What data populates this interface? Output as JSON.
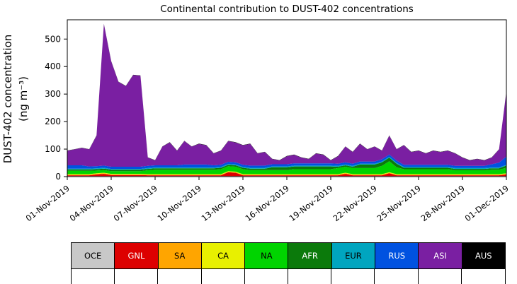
{
  "title": "Continental contribution to DUST-402 concentrations",
  "ylabel_line1": "DUST-402 concentration",
  "ylabel_line2": "(ng m⁻³)",
  "chart_data": {
    "type": "area",
    "stacked": true,
    "title": "Continental contribution to DUST-402 concentrations",
    "ylabel": "DUST-402 concentration (ng m⁻³)",
    "xlabel": "",
    "x_unit": "days since 01-Nov-2019",
    "xlim": [
      0,
      30
    ],
    "ylim": [
      0,
      570
    ],
    "grid": false,
    "legend_position": "bottom-table",
    "yticks": [
      0,
      100,
      200,
      300,
      400,
      500
    ],
    "xticks": [
      {
        "day": 0,
        "label": "01-Nov-2019"
      },
      {
        "day": 3,
        "label": "04-Nov-2019"
      },
      {
        "day": 6,
        "label": "07-Nov-2019"
      },
      {
        "day": 9,
        "label": "10-Nov-2019"
      },
      {
        "day": 12,
        "label": "13-Nov-2019"
      },
      {
        "day": 15,
        "label": "16-Nov-2019"
      },
      {
        "day": 18,
        "label": "19-Nov-2019"
      },
      {
        "day": 21,
        "label": "22-Nov-2019"
      },
      {
        "day": 24,
        "label": "25-Nov-2019"
      },
      {
        "day": 27,
        "label": "28-Nov-2019"
      },
      {
        "day": 30,
        "label": "01-Dec-2019"
      }
    ],
    "x": [
      0,
      0.5,
      1,
      1.5,
      2,
      2.5,
      3,
      3.5,
      4,
      4.5,
      5,
      5.5,
      6,
      6.5,
      7,
      7.5,
      8,
      8.5,
      9,
      9.5,
      10,
      10.5,
      11,
      11.5,
      12,
      12.5,
      13,
      13.5,
      14,
      14.5,
      15,
      15.5,
      16,
      16.5,
      17,
      17.5,
      18,
      18.5,
      19,
      19.5,
      20,
      20.5,
      21,
      21.5,
      22,
      22.5,
      23,
      23.5,
      24,
      24.5,
      25,
      25.5,
      26,
      26.5,
      27,
      27.5,
      28,
      28.5,
      29,
      29.5,
      30
    ],
    "series": [
      {
        "label": "OCE",
        "color": "#c8c8c8",
        "text_color": "#000000",
        "values": [
          2,
          2,
          2,
          2,
          2,
          2,
          2,
          2,
          2,
          2,
          2,
          2,
          2,
          2,
          2,
          2,
          2,
          2,
          2,
          2,
          2,
          2,
          2,
          2,
          2,
          2,
          2,
          2,
          2,
          2,
          2,
          2,
          2,
          2,
          2,
          2,
          2,
          2,
          2,
          2,
          2,
          2,
          2,
          2,
          2,
          2,
          2,
          2,
          2,
          2,
          2,
          2,
          2,
          2,
          2,
          2,
          2,
          2,
          2,
          2,
          2
        ]
      },
      {
        "label": "GNL",
        "color": "#dd0000",
        "text_color": "#ffffff",
        "values": [
          3,
          3,
          3,
          3,
          6,
          8,
          4,
          4,
          4,
          4,
          4,
          3,
          3,
          3,
          3,
          3,
          3,
          3,
          3,
          3,
          3,
          3,
          14,
          12,
          3,
          3,
          3,
          3,
          3,
          3,
          3,
          3,
          3,
          3,
          3,
          3,
          3,
          3,
          8,
          3,
          3,
          3,
          3,
          3,
          10,
          3,
          3,
          3,
          3,
          3,
          3,
          3,
          3,
          3,
          3,
          3,
          3,
          3,
          3,
          3,
          6
        ]
      },
      {
        "label": "SA",
        "color": "#ffa500",
        "text_color": "#000000",
        "values": [
          2,
          2,
          2,
          2,
          2,
          2,
          2,
          2,
          2,
          2,
          2,
          2,
          2,
          2,
          2,
          2,
          2,
          2,
          2,
          2,
          2,
          2,
          2,
          2,
          2,
          2,
          2,
          2,
          2,
          2,
          2,
          2,
          2,
          2,
          2,
          2,
          2,
          2,
          2,
          2,
          2,
          2,
          2,
          2,
          2,
          2,
          2,
          2,
          2,
          2,
          2,
          2,
          2,
          2,
          2,
          2,
          2,
          2,
          2,
          2,
          2
        ]
      },
      {
        "label": "CA",
        "color": "#e8f000",
        "text_color": "#000000",
        "values": [
          2,
          2,
          2,
          2,
          2,
          2,
          2,
          2,
          2,
          2,
          2,
          2,
          2,
          2,
          2,
          2,
          2,
          2,
          2,
          2,
          2,
          2,
          2,
          2,
          2,
          2,
          2,
          2,
          2,
          2,
          2,
          2,
          2,
          2,
          2,
          2,
          2,
          2,
          2,
          2,
          2,
          2,
          2,
          2,
          2,
          2,
          2,
          2,
          2,
          2,
          2,
          2,
          2,
          2,
          2,
          2,
          2,
          2,
          2,
          2,
          2
        ]
      },
      {
        "label": "NA",
        "color": "#00d400",
        "text_color": "#000000",
        "values": [
          12,
          12,
          12,
          12,
          10,
          10,
          10,
          10,
          10,
          10,
          10,
          14,
          16,
          16,
          16,
          16,
          16,
          16,
          16,
          16,
          16,
          18,
          18,
          18,
          18,
          15,
          15,
          15,
          15,
          15,
          15,
          18,
          18,
          18,
          18,
          18,
          18,
          22,
          22,
          22,
          22,
          22,
          22,
          30,
          40,
          25,
          18,
          18,
          18,
          18,
          18,
          18,
          18,
          14,
          14,
          14,
          14,
          14,
          16,
          16,
          20
        ]
      },
      {
        "label": "AFR",
        "color": "#0b7a0b",
        "text_color": "#ffffff",
        "values": [
          5,
          5,
          5,
          5,
          5,
          5,
          5,
          5,
          5,
          5,
          5,
          5,
          5,
          5,
          5,
          5,
          5,
          5,
          5,
          5,
          5,
          5,
          5,
          5,
          5,
          5,
          5,
          5,
          10,
          10,
          10,
          10,
          10,
          10,
          10,
          10,
          10,
          5,
          5,
          5,
          13,
          13,
          13,
          13,
          13,
          13,
          5,
          5,
          5,
          5,
          5,
          5,
          5,
          5,
          5,
          5,
          5,
          5,
          5,
          5,
          8
        ]
      },
      {
        "label": "EUR",
        "color": "#00a5bf",
        "text_color": "#000000",
        "values": [
          3,
          3,
          3,
          3,
          3,
          3,
          3,
          3,
          3,
          3,
          3,
          3,
          3,
          3,
          3,
          3,
          3,
          3,
          3,
          3,
          3,
          3,
          3,
          3,
          3,
          3,
          3,
          3,
          3,
          3,
          3,
          3,
          3,
          3,
          3,
          3,
          3,
          3,
          3,
          3,
          3,
          3,
          3,
          3,
          3,
          3,
          3,
          3,
          3,
          3,
          3,
          3,
          3,
          3,
          3,
          3,
          3,
          3,
          3,
          3,
          3
        ]
      },
      {
        "label": "RUS",
        "color": "#0052e0",
        "text_color": "#ffffff",
        "values": [
          12,
          12,
          12,
          8,
          8,
          8,
          8,
          8,
          8,
          8,
          8,
          8,
          8,
          8,
          8,
          8,
          11,
          11,
          11,
          11,
          8,
          8,
          8,
          8,
          8,
          8,
          8,
          8,
          8,
          8,
          8,
          8,
          8,
          8,
          8,
          8,
          8,
          8,
          8,
          8,
          8,
          8,
          8,
          8,
          8,
          8,
          8,
          8,
          8,
          8,
          8,
          8,
          8,
          8,
          8,
          8,
          8,
          8,
          12,
          18,
          30
        ]
      },
      {
        "label": "ASI",
        "color": "#7a1fa2",
        "text_color": "#ffffff",
        "values": [
          53,
          58,
          63,
          62,
          111,
          514,
          383,
          308,
          293,
          333,
          331,
          30,
          18,
          68,
          83,
          53,
          85,
          65,
          75,
          70,
          43,
          51,
          75,
          72,
          71,
          79,
          44,
          49,
          19,
          14,
          29,
          31,
          21,
          16,
          36,
          31,
          11,
          27,
          57,
          42,
          64,
          44,
          54,
          31,
          69,
          41,
          71,
          46,
          51,
          41,
          51,
          46,
          51,
          45,
          30,
          20,
          25,
          20,
          24,
          48,
          236
        ]
      },
      {
        "label": "AUS",
        "color": "#000000",
        "text_color": "#ffffff",
        "values": [
          1,
          1,
          1,
          1,
          1,
          1,
          1,
          1,
          1,
          1,
          1,
          1,
          1,
          1,
          1,
          1,
          1,
          1,
          1,
          1,
          1,
          1,
          1,
          1,
          1,
          1,
          1,
          1,
          1,
          1,
          1,
          1,
          1,
          1,
          1,
          1,
          1,
          1,
          1,
          1,
          1,
          1,
          1,
          1,
          1,
          1,
          1,
          1,
          1,
          1,
          1,
          1,
          1,
          1,
          1,
          1,
          1,
          1,
          1,
          1,
          1
        ]
      }
    ]
  }
}
